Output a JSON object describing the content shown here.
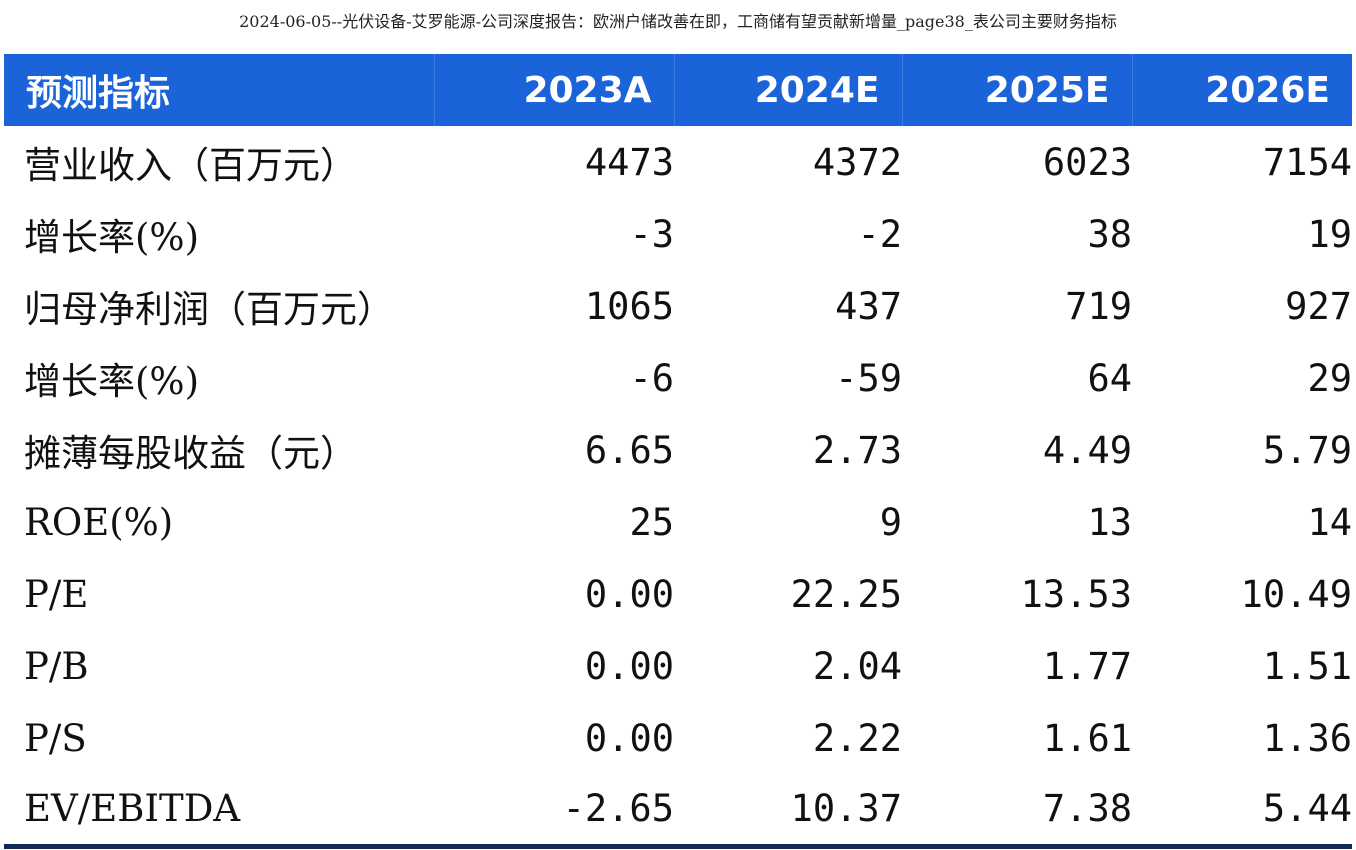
{
  "caption": "2024-06-05--光伏设备-艾罗能源-公司深度报告：欧洲户储改善在即，工商储有望贡献新增量_page38_表公司主要财务指标",
  "table": {
    "header": {
      "label": "预测指标",
      "years": [
        "2023A",
        "2024E",
        "2025E",
        "2026E"
      ]
    },
    "rows": [
      {
        "label": "营业收入（百万元）",
        "values": [
          "4473",
          "4372",
          "6023",
          "7154"
        ]
      },
      {
        "label": "增长率(%)",
        "values": [
          "-3",
          "-2",
          "38",
          "19"
        ]
      },
      {
        "label": "归母净利润（百万元）",
        "values": [
          "1065",
          "437",
          "719",
          "927"
        ]
      },
      {
        "label": "增长率(%)",
        "values": [
          "-6",
          "-59",
          "64",
          "29"
        ]
      },
      {
        "label": "摊薄每股收益（元）",
        "values": [
          "6.65",
          "2.73",
          "4.49",
          "5.79"
        ]
      },
      {
        "label": "ROE(%)",
        "values": [
          "25",
          "9",
          "13",
          "14"
        ]
      },
      {
        "label": "P/E",
        "values": [
          "0.00",
          "22.25",
          "13.53",
          "10.49"
        ]
      },
      {
        "label": "P/B",
        "values": [
          "0.00",
          "2.04",
          "1.77",
          "1.51"
        ]
      },
      {
        "label": "P/S",
        "values": [
          "0.00",
          "2.22",
          "1.61",
          "1.36"
        ]
      },
      {
        "label": "EV/EBITDA",
        "values": [
          "-2.65",
          "10.37",
          "7.38",
          "5.44"
        ]
      }
    ]
  },
  "colors": {
    "header_bg": "#1a63d8",
    "header_text": "#ffffff",
    "bottom_rule": "#0f2a55"
  }
}
